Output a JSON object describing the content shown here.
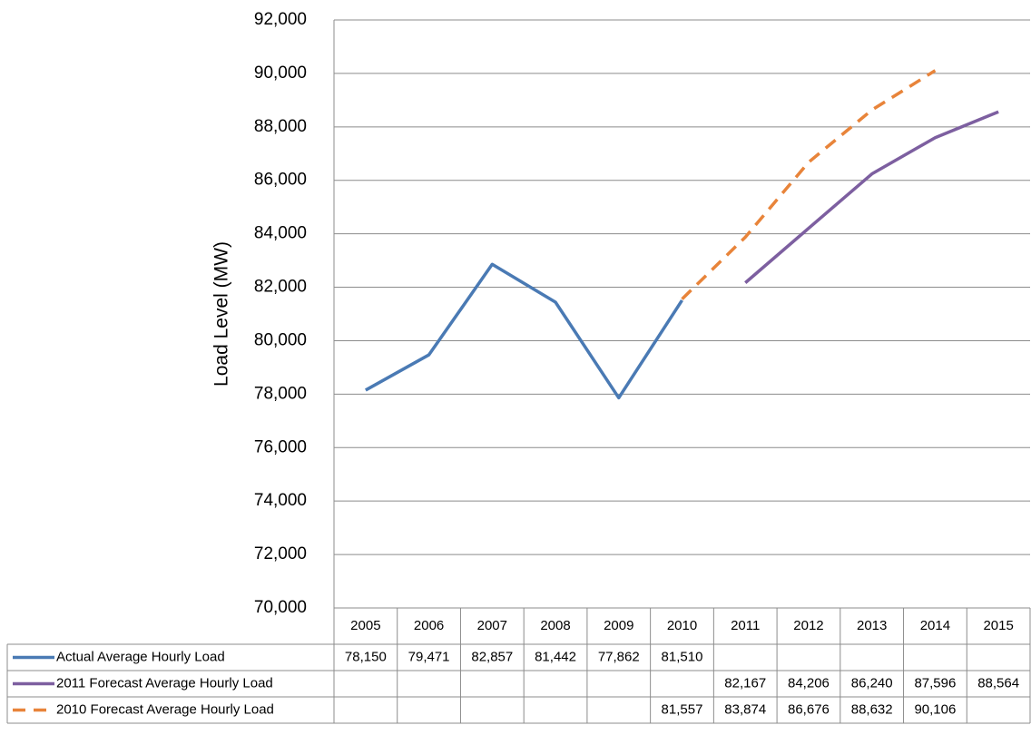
{
  "chart_data": {
    "type": "line",
    "y_label": "Load Level (MW)",
    "categories": [
      "2005",
      "2006",
      "2007",
      "2008",
      "2009",
      "2010",
      "2011",
      "2012",
      "2013",
      "2014",
      "2015"
    ],
    "ylim": [
      70000,
      92000
    ],
    "yticks": [
      {
        "value": 70000,
        "label": "70,000"
      },
      {
        "value": 72000,
        "label": "72,000"
      },
      {
        "value": 74000,
        "label": "74,000"
      },
      {
        "value": 76000,
        "label": "76,000"
      },
      {
        "value": 78000,
        "label": "78,000"
      },
      {
        "value": 80000,
        "label": "80,000"
      },
      {
        "value": 82000,
        "label": "82,000"
      },
      {
        "value": 84000,
        "label": "84,000"
      },
      {
        "value": 86000,
        "label": "86,000"
      },
      {
        "value": 88000,
        "label": "88,000"
      },
      {
        "value": 90000,
        "label": "90,000"
      },
      {
        "value": 92000,
        "label": "92,000"
      }
    ],
    "grid": true,
    "series": [
      {
        "name": "Actual Average Hourly Load",
        "color": "#4a7ab4",
        "dashed": false,
        "values": [
          78150,
          79471,
          82857,
          81442,
          77862,
          81510,
          null,
          null,
          null,
          null,
          null
        ],
        "value_labels": [
          "78,150",
          "79,471",
          "82,857",
          "81,442",
          "77,862",
          "81,510",
          null,
          null,
          null,
          null,
          null
        ]
      },
      {
        "name": "2011 Forecast Average Hourly Load",
        "color": "#7d5fa0",
        "dashed": false,
        "values": [
          null,
          null,
          null,
          null,
          null,
          null,
          82167,
          84206,
          86240,
          87596,
          88564
        ],
        "value_labels": [
          null,
          null,
          null,
          null,
          null,
          null,
          "82,167",
          "84,206",
          "86,240",
          "87,596",
          "88,564"
        ]
      },
      {
        "name": "2010 Forecast Average Hourly Load",
        "color": "#e8843a",
        "dashed": true,
        "values": [
          null,
          null,
          null,
          null,
          null,
          81557,
          83874,
          86676,
          88632,
          90106,
          null
        ],
        "value_labels": [
          null,
          null,
          null,
          null,
          null,
          "81,557",
          "83,874",
          "86,676",
          "88,632",
          "90,106",
          null
        ]
      }
    ]
  }
}
